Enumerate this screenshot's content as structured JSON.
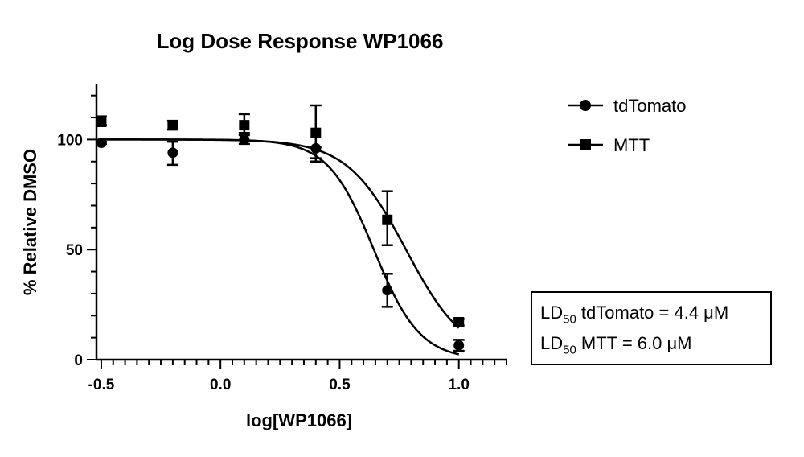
{
  "chart_data": {
    "type": "scatter",
    "title": "Log Dose  Response  WP1066",
    "xlabel": "log[WP1066]",
    "ylabel": "% Relative DMSO",
    "xlim": [
      -0.52,
      1.2
    ],
    "ylim": [
      0,
      125
    ],
    "xticks": [
      -0.5,
      0.0,
      0.5,
      1.0
    ],
    "xtick_labels": [
      "-0.5",
      "0.0",
      "0.5",
      "1.0"
    ],
    "yticks": [
      0,
      50,
      100
    ],
    "ytick_labels": [
      "0",
      "50",
      "100"
    ],
    "grid": false,
    "legend_position": "top-right",
    "series": [
      {
        "name": "tdTomato",
        "marker": "circle",
        "x": [
          -0.5,
          -0.2,
          0.1,
          0.4,
          0.7,
          1.0
        ],
        "y": [
          98.5,
          94,
          100,
          96,
          31.5,
          6.5
        ],
        "err_low": [
          98,
          88.5,
          98,
          90,
          24,
          4
        ],
        "err_high": [
          99,
          99,
          102,
          96.5,
          39,
          9
        ],
        "fit": {
          "top": 100,
          "bottom": 0,
          "logEC50": 0.6435,
          "hill": 4.5
        }
      },
      {
        "name": "MTT",
        "marker": "square",
        "x": [
          -0.5,
          -0.2,
          0.1,
          0.4,
          0.7,
          1.0
        ],
        "y": [
          108,
          106.5,
          106.5,
          103,
          63.5,
          17
        ],
        "err_low": [
          106.5,
          104.5,
          103,
          91.5,
          52,
          15.5
        ],
        "err_high": [
          110.5,
          108.5,
          111.5,
          115.5,
          76.5,
          18.5
        ],
        "fit": {
          "top": 100,
          "bottom": 0,
          "logEC50": 0.7782,
          "hill": 3.5
        }
      }
    ],
    "annotations": {
      "line1": {
        "prefix": "LD",
        "sub": "50",
        "text": " tdTomato = 4.4 μM"
      },
      "line2": {
        "prefix": "LD",
        "sub": "50",
        "text": " MTT = 6.0 μM"
      }
    }
  }
}
